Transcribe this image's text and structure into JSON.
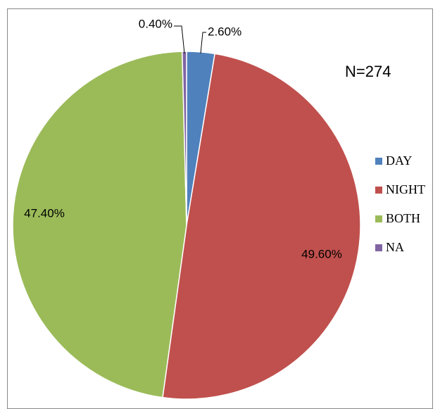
{
  "chart_data": {
    "type": "pie",
    "annotation": "N=274",
    "categories": [
      "DAY",
      "NIGHT",
      "BOTH",
      "NA"
    ],
    "values": [
      2.6,
      49.6,
      47.4,
      0.4
    ],
    "value_labels": [
      "2.60%",
      "49.60%",
      "47.40%",
      "0.40%"
    ],
    "colors": [
      "#4f81bd",
      "#c0504d",
      "#9bbb59",
      "#8064a2"
    ],
    "legend": "right"
  }
}
